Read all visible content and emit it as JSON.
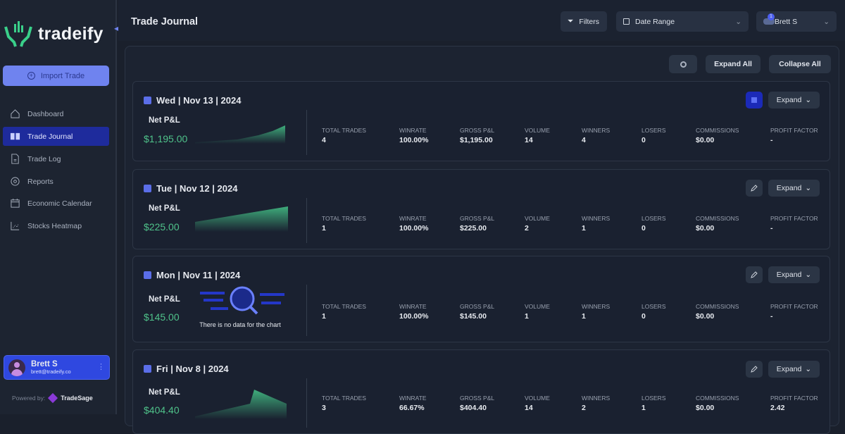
{
  "app": {
    "brand": "tradeify",
    "import_label": "Import Trade",
    "powered_by": "Powered by:",
    "powered_brand": "TradeSage"
  },
  "sidebar": {
    "items": [
      {
        "label": "Dashboard"
      },
      {
        "label": "Trade Journal",
        "active": true
      },
      {
        "label": "Trade Log"
      },
      {
        "label": "Reports"
      },
      {
        "label": "Economic Calendar"
      },
      {
        "label": "Stocks Heatmap"
      }
    ]
  },
  "user": {
    "name": "Brett S",
    "email": "brett@tradeify.co",
    "notification_count": "1"
  },
  "header": {
    "title": "Trade Journal",
    "filters_label": "Filters",
    "date_range_label": "Date Range",
    "account_label": "Brett S"
  },
  "toolbar": {
    "expand_all": "Expand All",
    "collapse_all": "Collapse All"
  },
  "stat_labels": [
    "TOTAL TRADES",
    "WINRATE",
    "GROSS P&L",
    "VOLUME",
    "WINNERS",
    "LOSERS",
    "COMMISSIONS",
    "PROFIT FACTOR"
  ],
  "net_pnl_label": "Net P&L",
  "expand_label": "Expand",
  "no_data_text": "There is no data for the chart",
  "days": [
    {
      "date": "Wed | Nov 13 | 2024",
      "net_pnl": "$1,195.00",
      "stats": [
        "4",
        "100.00%",
        "$1,195.00",
        "14",
        "4",
        "0",
        "$0.00",
        "-"
      ]
    },
    {
      "date": "Tue | Nov 12 | 2024",
      "net_pnl": "$225.00",
      "stats": [
        "1",
        "100.00%",
        "$225.00",
        "2",
        "1",
        "0",
        "$0.00",
        "-"
      ]
    },
    {
      "date": "Mon | Nov 11 | 2024",
      "net_pnl": "$145.00",
      "stats": [
        "1",
        "100.00%",
        "$145.00",
        "1",
        "1",
        "0",
        "$0.00",
        "-"
      ]
    },
    {
      "date": "Fri | Nov 8 | 2024",
      "net_pnl": "$404.40",
      "stats": [
        "3",
        "66.67%",
        "$404.40",
        "14",
        "2",
        "1",
        "$0.00",
        "2.42"
      ]
    }
  ],
  "colors": {
    "accent": "#6f83ef",
    "active_nav": "#1e2b9c",
    "profit": "#4fc28a"
  }
}
